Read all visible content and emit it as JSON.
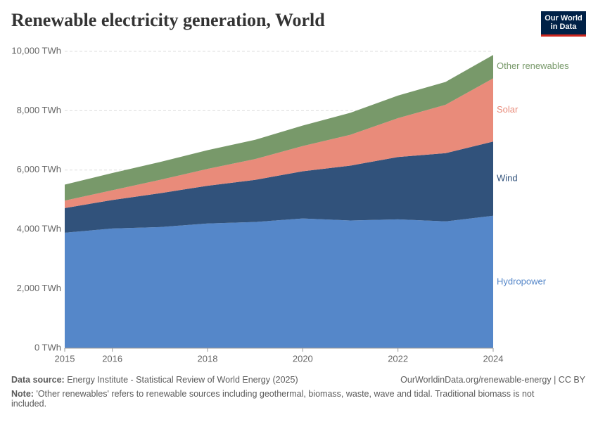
{
  "logo": "Our World in Data",
  "chart_data": {
    "type": "stacked-area",
    "title": "Renewable electricity generation, World",
    "x": [
      2015,
      2016,
      2017,
      2018,
      2019,
      2020,
      2021,
      2022,
      2023,
      2024
    ],
    "xlim": [
      2015,
      2024
    ],
    "xticks": [
      2015,
      2016,
      2018,
      2020,
      2022,
      2024
    ],
    "ylim": [
      0,
      10000
    ],
    "yticks": [
      {
        "value": 0,
        "label": "0 TWh"
      },
      {
        "value": 2000,
        "label": "2,000 TWh"
      },
      {
        "value": 4000,
        "label": "4,000 TWh"
      },
      {
        "value": 6000,
        "label": "6,000 TWh"
      },
      {
        "value": 8000,
        "label": "8,000 TWh"
      },
      {
        "value": 10000,
        "label": "10,000 TWh"
      }
    ],
    "grid": true,
    "series": [
      {
        "name": "Hydropower",
        "color": "#5587c9",
        "values": [
          3890,
          4030,
          4080,
          4200,
          4250,
          4370,
          4300,
          4340,
          4270,
          4460
        ]
      },
      {
        "name": "Wind",
        "color": "#31527b",
        "values": [
          830,
          960,
          1140,
          1270,
          1420,
          1590,
          1850,
          2100,
          2300,
          2500
        ]
      },
      {
        "name": "Solar",
        "color": "#e98b7a",
        "values": [
          250,
          330,
          450,
          570,
          700,
          850,
          1040,
          1310,
          1630,
          2130
        ]
      },
      {
        "name": "Other renewables",
        "color": "#78996a",
        "values": [
          540,
          580,
          600,
          630,
          650,
          690,
          740,
          760,
          770,
          790
        ]
      }
    ],
    "source_label": "Data source:",
    "source": "Energy Institute - Statistical Review of World Energy (2025)",
    "url": "OurWorldinData.org/renewable-energy | CC BY",
    "note_label": "Note:",
    "note": "'Other renewables' refers to renewable sources including geothermal, biomass, waste, wave and tidal. Traditional biomass is not included."
  }
}
